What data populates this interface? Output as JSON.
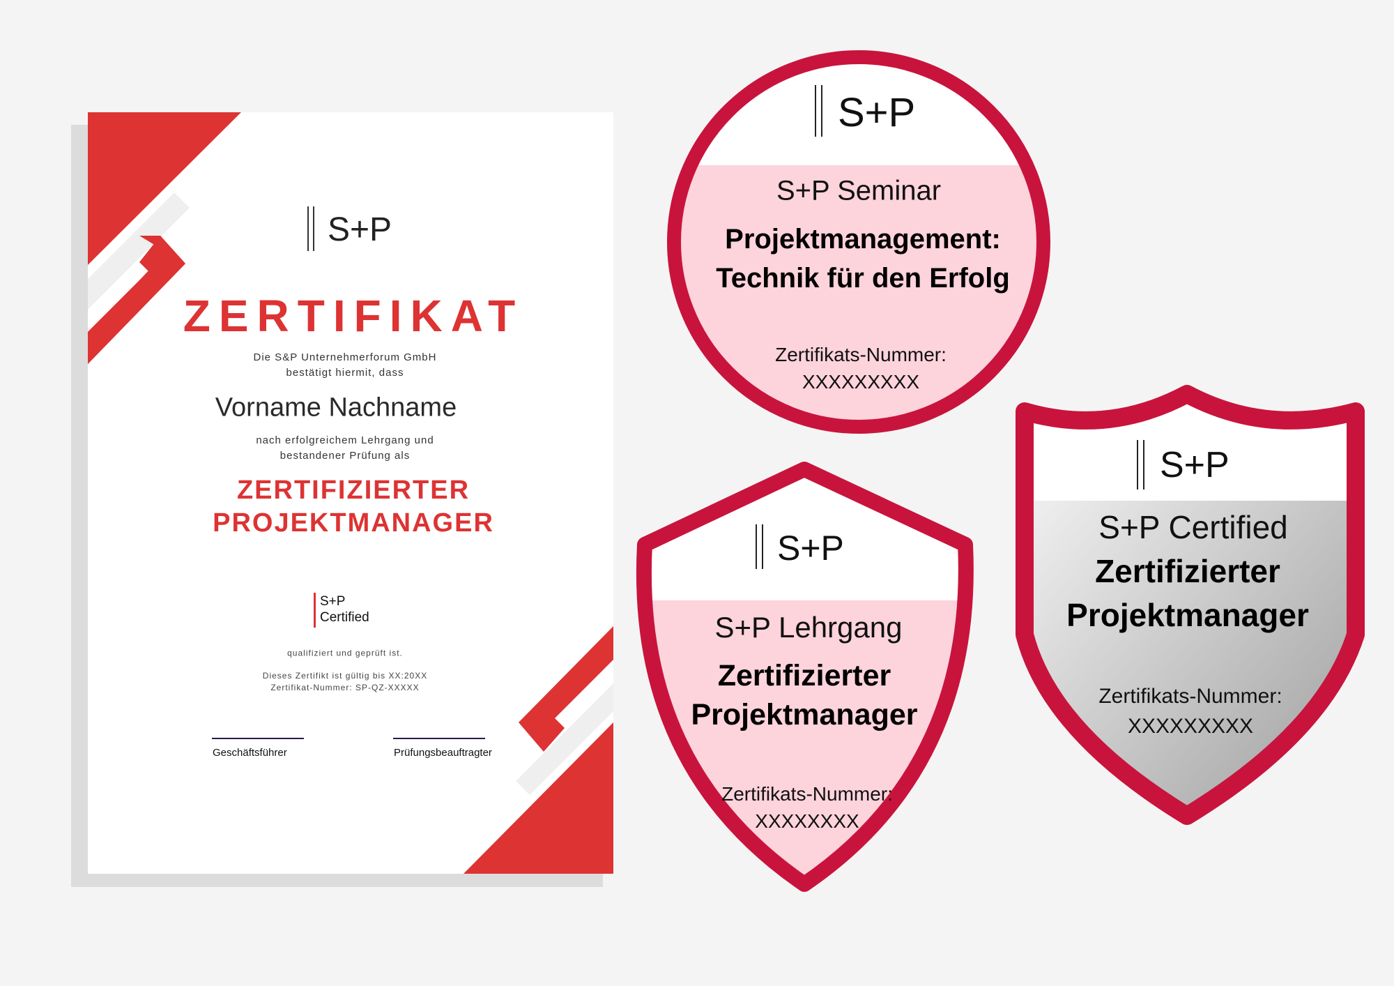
{
  "colors": {
    "certificate_red": "#dd3333",
    "badge_red": "#c8143c",
    "badge_pink": "#fdd3dc",
    "background": "#f4f4f4"
  },
  "certificate": {
    "logo": "S+P",
    "title": "ZERTIFIKAT",
    "intro_line1": "Die S&P Unternehmerforum GmbH",
    "intro_line2": "bestätigt hiermit, dass",
    "name": "Vorname Nachname",
    "body_line1": "nach erfolgreichem Lehrgang und",
    "body_line2": "bestandener Prüfung als",
    "role_line1": "ZERTIFIZIERTER",
    "role_line2": "PROJEKTMANAGER",
    "seal_line1": "S+P",
    "seal_line2": "Certified",
    "qualified": "qualifiziert und geprüft ist.",
    "validity": "Dieses Zertifikt ist gültig bis XX:20XX",
    "number": "Zertifikat-Nummer: SP-QZ-XXXXX",
    "signature_left": "Geschäftsführer",
    "signature_right": "Prüfungsbeauftragter"
  },
  "badges": [
    {
      "logo": "S+P",
      "type": "S+P Seminar",
      "title_line1": "Projektmanagement:",
      "title_line2": "Technik für den Erfolg",
      "number_label": "Zertifikats-Nummer:",
      "number": "XXXXXXXXX"
    },
    {
      "logo": "S+P",
      "type": "S+P Lehrgang",
      "title_line1": "Zertifizierter",
      "title_line2": "Projektmanager",
      "number_label": "Zertifikats-Nummer:",
      "number": "XXXXXXXX"
    },
    {
      "logo": "S+P",
      "type": "S+P Certified",
      "title_line1": "Zertifizierter",
      "title_line2": "Projektmanager",
      "number_label": "Zertifikats-Nummer:",
      "number": "XXXXXXXXX"
    }
  ]
}
